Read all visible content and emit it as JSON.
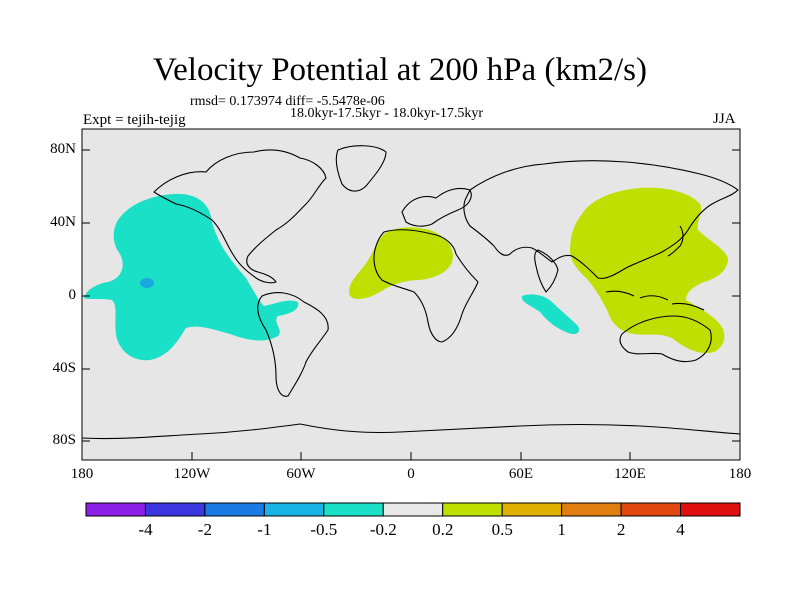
{
  "title": "Velocity Potential at 200 hPa (km2/s)",
  "stats": "rmsd= 0.173974 diff= -5.5478e-06",
  "period": "18.0kyr-17.5kyr - 18.0kyr-17.5kyr",
  "experiment": "Expt = tejih-tejig",
  "season": "JJA",
  "axes": {
    "y_ticks": [
      "80N",
      "40N",
      "0",
      "40S",
      "80S"
    ],
    "x_ticks": [
      "180",
      "120W",
      "60W",
      "0",
      "60E",
      "120E",
      "180"
    ]
  },
  "colorbar": {
    "colors": [
      "#8b1fe6",
      "#3a36e0",
      "#1a7ae6",
      "#19b4e6",
      "#19e0c6",
      "#e8e8e8",
      "#bfdf00",
      "#e0b000",
      "#e07f10",
      "#e04810",
      "#e01010"
    ],
    "labels": [
      "-4",
      "-2",
      "-1",
      "-0.5",
      "-0.2",
      "0.2",
      "0.5",
      "1",
      "2",
      "4"
    ]
  },
  "colors": {
    "land_bg": "#e6e6e6",
    "negative_fill": "#19e0c6",
    "positive_fill": "#bfdf00"
  }
}
